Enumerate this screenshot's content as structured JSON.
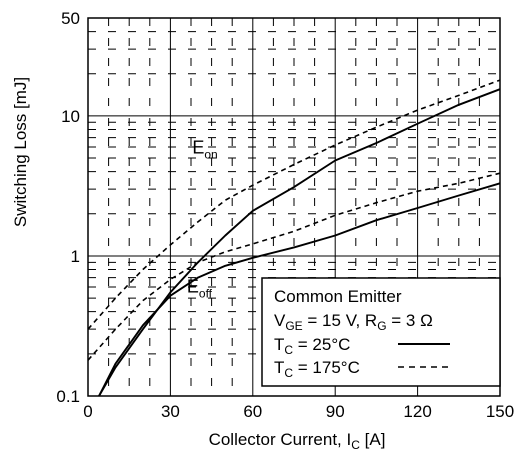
{
  "chart_data": {
    "type": "line",
    "xlabel": {
      "main": "Collector Current, I",
      "sub": "C",
      "tail": " [A]"
    },
    "ylabel": "Switching Loss [mJ]",
    "xlim": [
      0,
      150
    ],
    "ylim": [
      0.1,
      50
    ],
    "y_scale": "log",
    "x_ticks": [
      "0",
      "30",
      "60",
      "90",
      "120",
      "150"
    ],
    "y_ticks": [
      "0.1",
      "1",
      "10",
      "50"
    ],
    "grid": true,
    "annotations": [
      {
        "id": "eon",
        "main": "E",
        "sub": "on",
        "x": 38,
        "y": 5.4
      },
      {
        "id": "eoff",
        "main": "E",
        "sub": "off",
        "x": 36,
        "y": 0.55
      }
    ],
    "legend": {
      "placement": "bottom-right",
      "line1": "Common Emitter",
      "line2": {
        "a": "V",
        "a_sub": "GE",
        "b": " = 15 V, R",
        "b_sub": "G",
        "c": " = 3 Ω"
      },
      "line3": {
        "a": "T",
        "a_sub": "C",
        "b": " = 25°C"
      },
      "line4": {
        "a": "T",
        "a_sub": "C",
        "b": " = 175°C"
      }
    },
    "series": [
      {
        "name": "",
        "group": "Eon",
        "temp": "25",
        "style": "solid",
        "x": [
          4,
          10,
          20,
          30,
          40,
          50,
          60,
          75,
          90,
          105,
          120,
          135,
          150
        ],
        "y": [
          0.1,
          0.16,
          0.3,
          0.55,
          0.9,
          1.4,
          2.1,
          3.1,
          4.8,
          6.4,
          8.8,
          12,
          15.5
        ]
      },
      {
        "name": "",
        "group": "Eon",
        "temp": "175",
        "style": "dashed",
        "x": [
          0,
          10,
          20,
          30,
          40,
          50,
          60,
          75,
          90,
          105,
          120,
          135,
          150
        ],
        "y": [
          0.3,
          0.5,
          0.8,
          1.2,
          1.75,
          2.5,
          3.2,
          4.5,
          6.2,
          8.3,
          11,
          14,
          18
        ]
      },
      {
        "name": "",
        "group": "Eoff",
        "temp": "25",
        "style": "solid",
        "x": [
          4,
          10,
          20,
          30,
          40,
          50,
          60,
          75,
          90,
          105,
          120,
          135,
          150
        ],
        "y": [
          0.1,
          0.17,
          0.32,
          0.52,
          0.7,
          0.85,
          0.97,
          1.15,
          1.4,
          1.8,
          2.2,
          2.7,
          3.3
        ]
      },
      {
        "name": "",
        "group": "Eoff",
        "temp": "175",
        "style": "dashed",
        "x": [
          0,
          10,
          20,
          30,
          40,
          50,
          60,
          75,
          90,
          105,
          120,
          135,
          150
        ],
        "y": [
          0.18,
          0.3,
          0.48,
          0.68,
          0.9,
          1.07,
          1.22,
          1.5,
          1.95,
          2.4,
          2.9,
          3.3,
          3.9
        ]
      }
    ]
  }
}
